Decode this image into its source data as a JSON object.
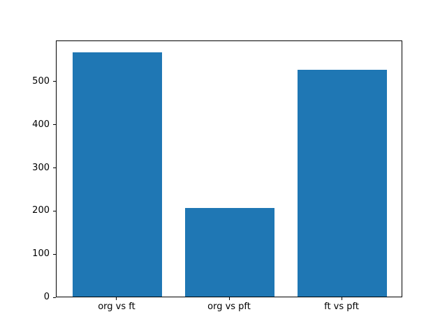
{
  "chart_data": {
    "type": "bar",
    "categories": [
      "org vs ft",
      "org vs pft",
      "ft vs pft"
    ],
    "values": [
      567,
      206,
      526
    ],
    "title": "",
    "xlabel": "",
    "ylabel": "",
    "ylim": [
      0,
      595.35
    ],
    "yticks": [
      0,
      100,
      200,
      300,
      400,
      500
    ],
    "bar_color": "#1f77b4",
    "axis_color": "#000000",
    "background_color": "#ffffff",
    "grid": false,
    "legend_position": "none"
  }
}
